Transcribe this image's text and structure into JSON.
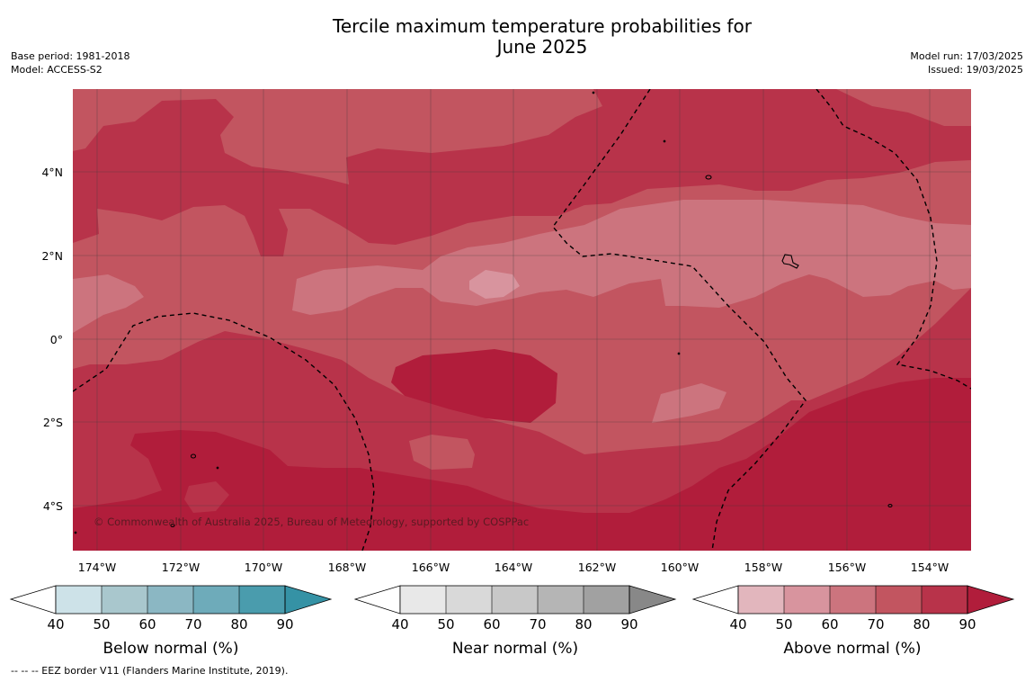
{
  "title": {
    "line1": "Tercile maximum temperature probabilities for",
    "line2": "June 2025"
  },
  "meta_left": {
    "base_period": "Base period: 1981-2018",
    "model": "Model: ACCESS-S2"
  },
  "meta_right": {
    "model_run": "Model run: 17/03/2025",
    "issued": "Issued: 19/03/2025"
  },
  "map": {
    "lat_ticks": [
      "4°N",
      "2°N",
      "0°",
      "2°S",
      "4°S"
    ],
    "lon_ticks": [
      "174°W",
      "172°W",
      "170°W",
      "168°W",
      "166°W",
      "164°W",
      "162°W",
      "160°W",
      "158°W",
      "156°W",
      "154°W"
    ],
    "copyright": "© Commonwealth of Australia 2025, Bureau of Meteorology, supported by COSPPac",
    "palette_above": [
      "#e2b6bd",
      "#d8949e",
      "#cc747e",
      "#c25560",
      "#b8334a",
      "#b11d3b"
    ]
  },
  "colorbars": [
    {
      "label": "Below normal (%)",
      "ticks": [
        "40",
        "50",
        "60",
        "70",
        "80",
        "90"
      ],
      "colors": [
        "#cde2e8",
        "#a9c7cd",
        "#8bb7c3",
        "#6eabba",
        "#4a9cad",
        "#3592a5"
      ]
    },
    {
      "label": "Near normal (%)",
      "ticks": [
        "40",
        "50",
        "60",
        "70",
        "80",
        "90"
      ],
      "colors": [
        "#e8e8e8",
        "#d9d9d9",
        "#c8c8c8",
        "#b5b5b5",
        "#a1a1a1",
        "#888888"
      ]
    },
    {
      "label": "Above normal (%)",
      "ticks": [
        "40",
        "50",
        "60",
        "70",
        "80",
        "90"
      ],
      "colors": [
        "#e2b6bd",
        "#d8949e",
        "#cc747e",
        "#c25560",
        "#b8334a",
        "#b11d3b"
      ]
    }
  ],
  "footnote": "--  --  -- EEZ border V11 (Flanders Marine Institute, 2019)."
}
